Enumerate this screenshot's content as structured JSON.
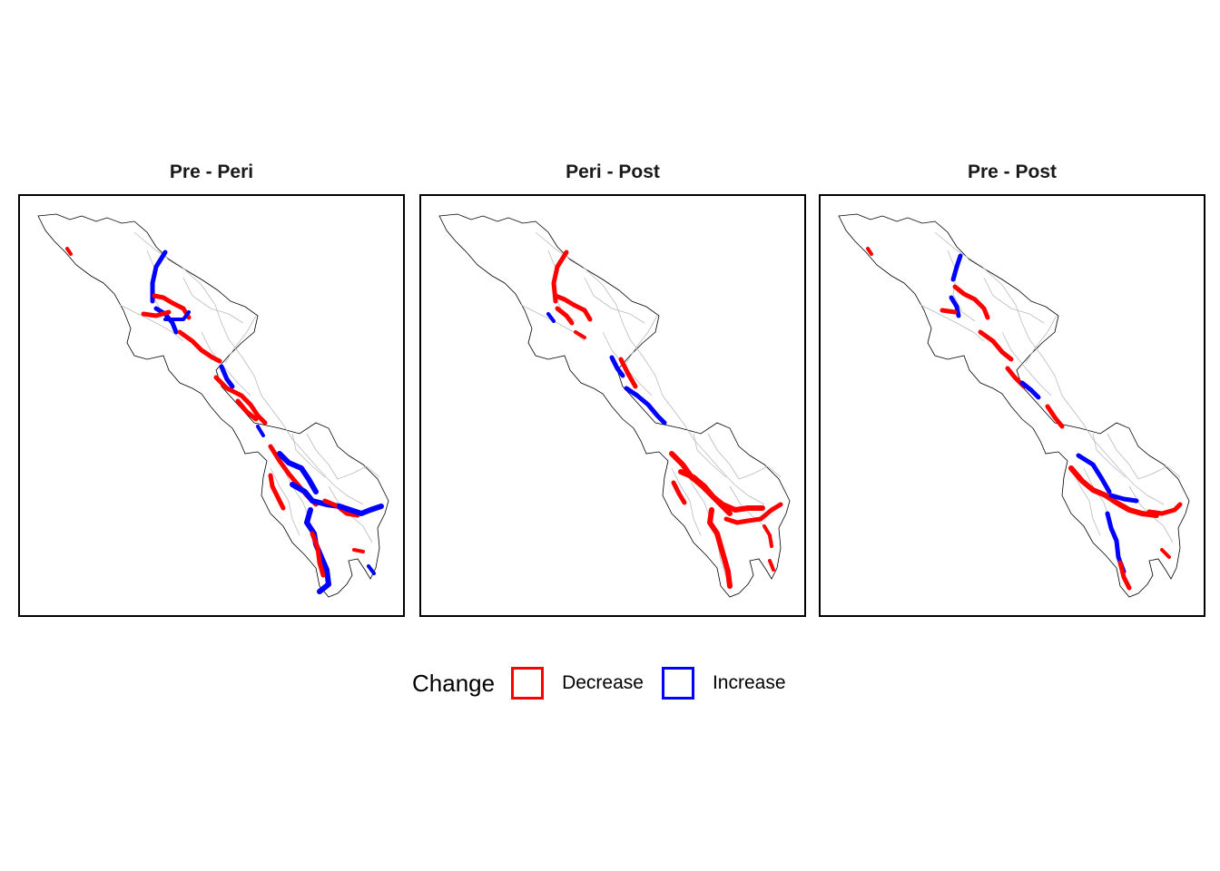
{
  "panels": [
    {
      "title": "Pre - Peri"
    },
    {
      "title": "Peri - Post"
    },
    {
      "title": "Pre - Post"
    }
  ],
  "legend": {
    "title": "Change",
    "items": [
      {
        "label": "Decrease",
        "color": "#ff0000"
      },
      {
        "label": "Increase",
        "color": "#0000ff"
      }
    ]
  },
  "colors": {
    "decrease": "#ff0000",
    "increase": "#0000ff",
    "boundary": "#000000",
    "rivers": "#bbbbbb"
  }
}
